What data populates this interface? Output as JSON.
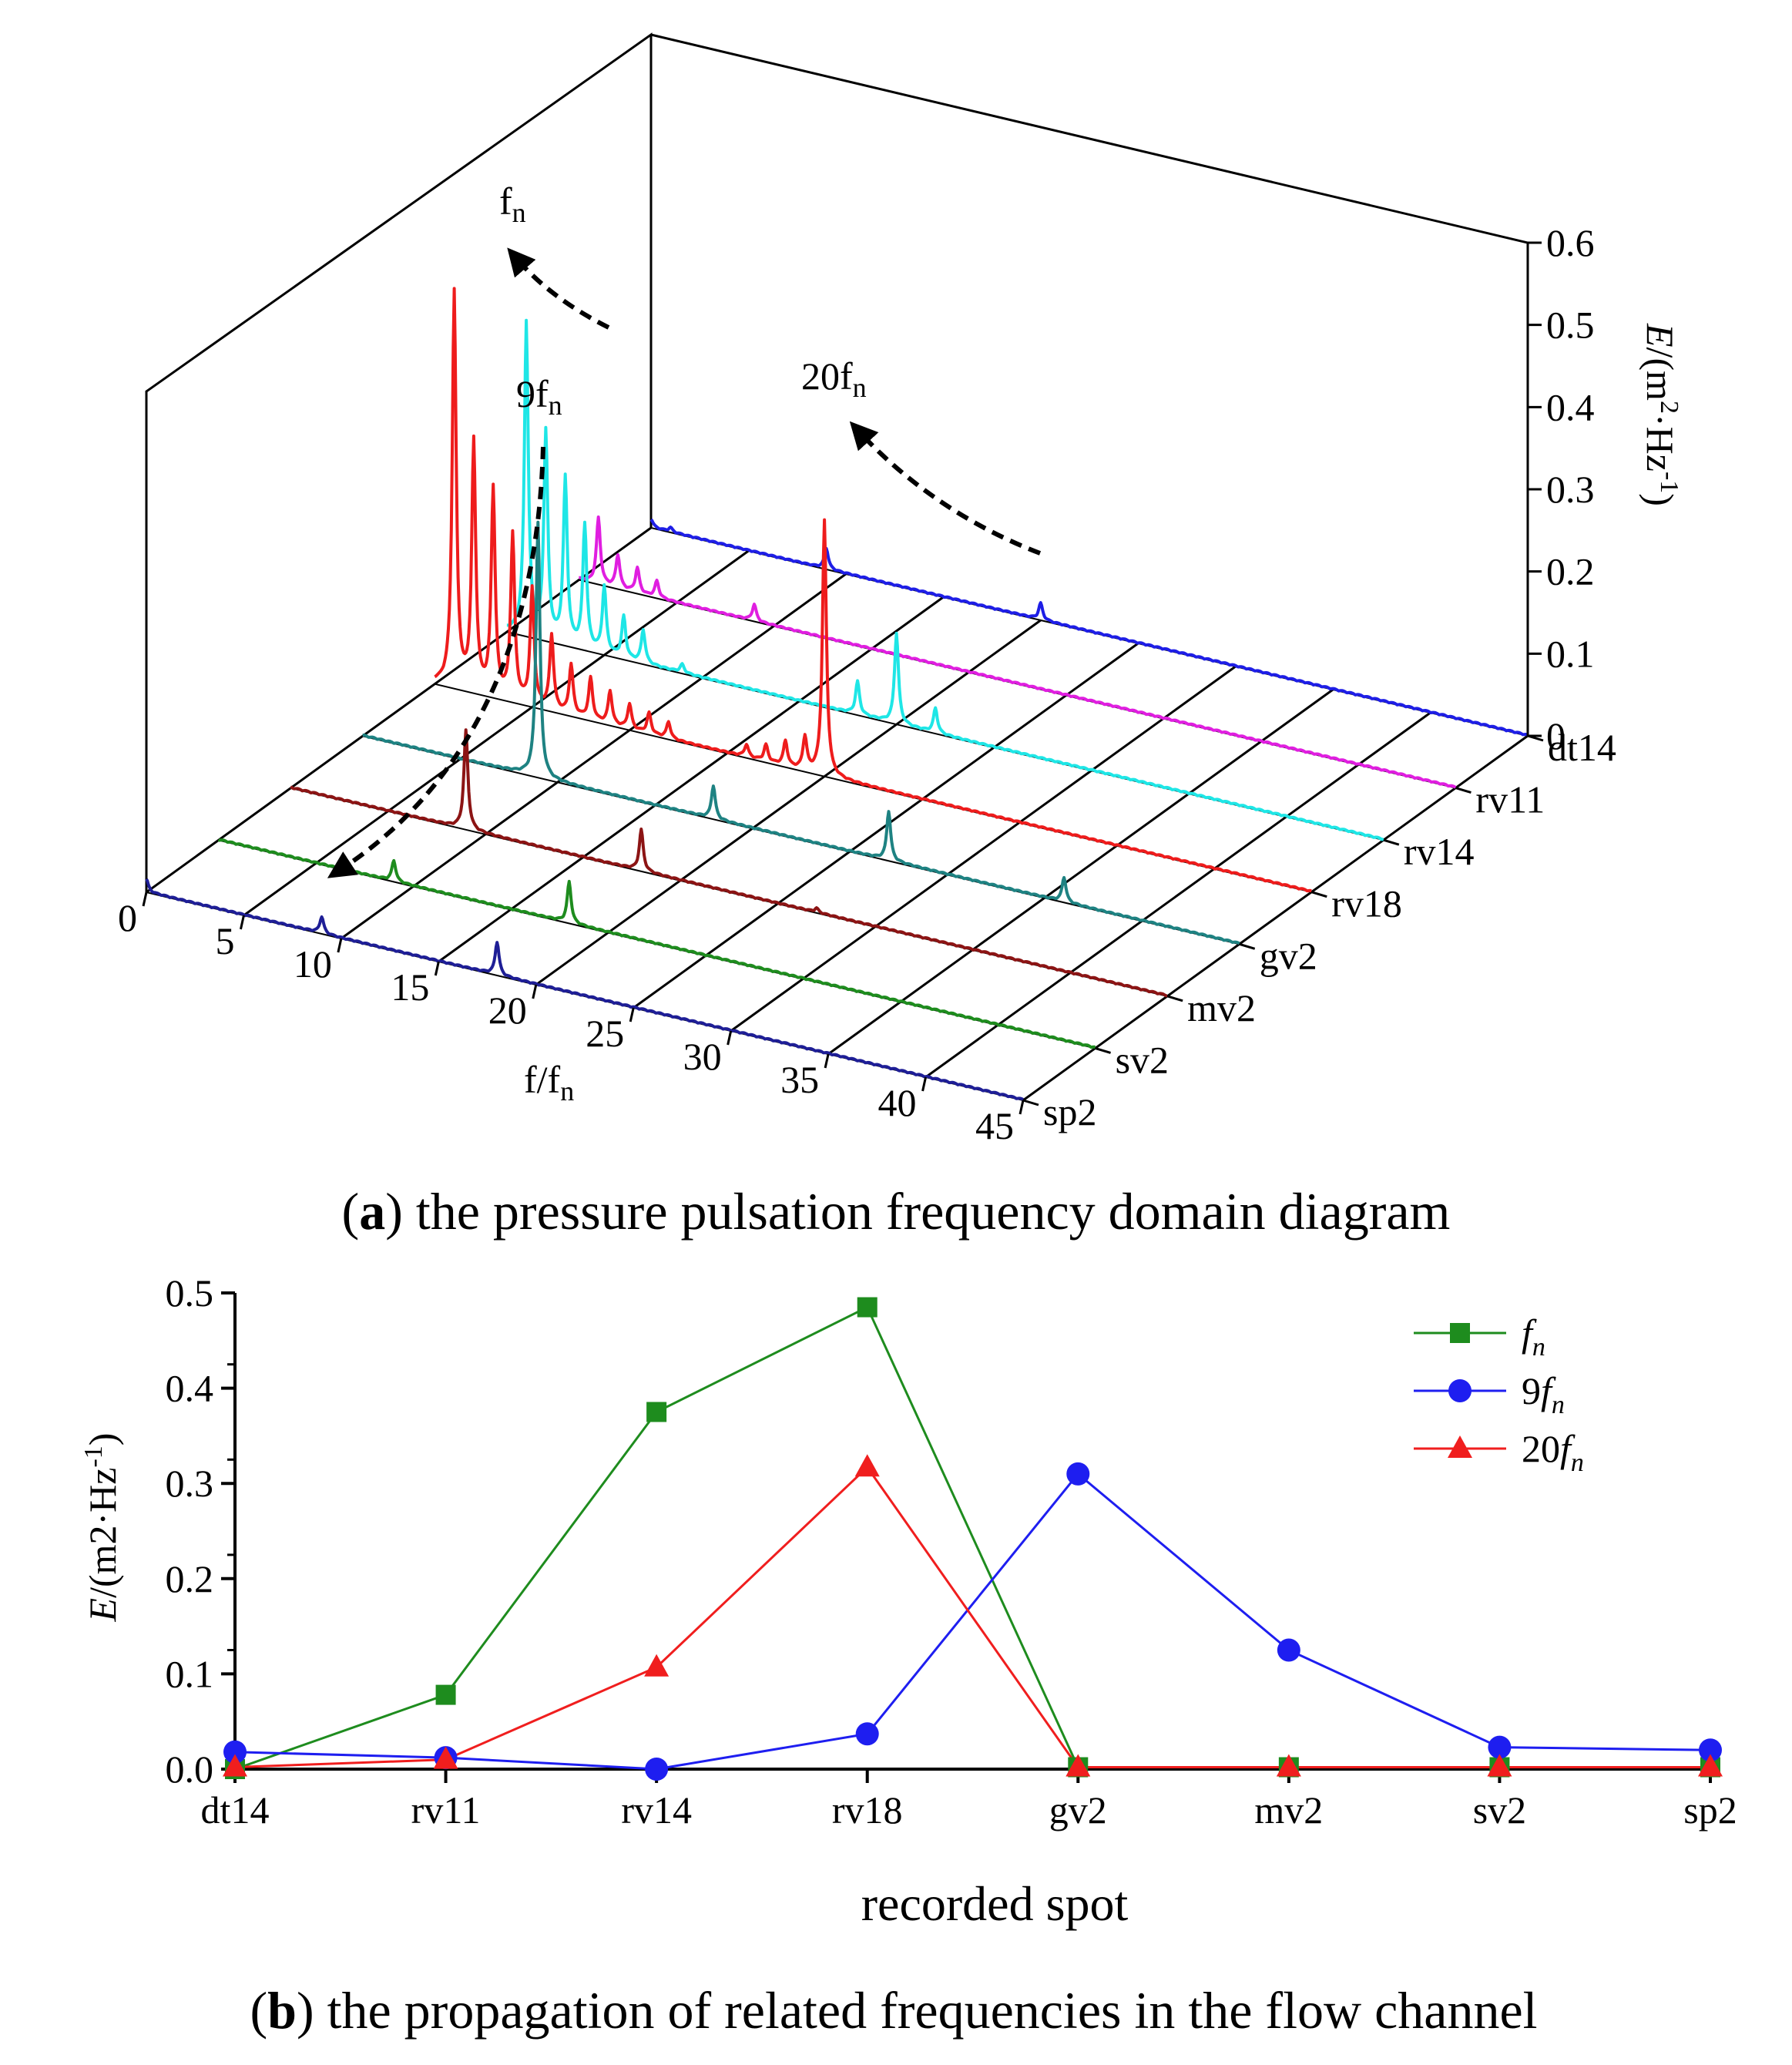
{
  "chart_data": [
    {
      "type": "line",
      "subtype": "3d-waterfall",
      "caption": {
        "letter": "a",
        "text": " the pressure pulsation frequency domain diagram"
      },
      "xlabel": {
        "main": "f/f",
        "sub": "n"
      },
      "zlabel": {
        "prefix": "E",
        "rest": "/(m",
        "sup": "2",
        "mid": "·Hz",
        "sup2": "-1",
        "end": ")"
      },
      "xlim": [
        0,
        45
      ],
      "x_ticks": [
        "0",
        "5",
        "10",
        "15",
        "20",
        "25",
        "30",
        "35",
        "40",
        "45"
      ],
      "zlim": [
        0,
        0.6
      ],
      "z_ticks": [
        "0",
        "0.1",
        "0.2",
        "0.3",
        "0.4",
        "0.5",
        "0.6"
      ],
      "depth_categories": [
        "dt14",
        "rv11",
        "rv14",
        "rv18",
        "gv2",
        "mv2",
        "sv2",
        "sp2"
      ],
      "series": [
        {
          "name": "dt14",
          "color": "#1e1ee6",
          "peaks": [
            [
              0,
              0.01
            ],
            [
              20,
              0.02
            ],
            [
              1,
              0.005
            ],
            [
              9,
              0.025
            ]
          ]
        },
        {
          "name": "rv11",
          "color": "#e01ee0",
          "peaks": [
            [
              1,
              0.08
            ],
            [
              2,
              0.04
            ],
            [
              3,
              0.03
            ],
            [
              4,
              0.02
            ],
            [
              9,
              0.02
            ]
          ]
        },
        {
          "name": "rv14",
          "color": "#1ee6e6",
          "peaks": [
            [
              1,
              0.38
            ],
            [
              2,
              0.25
            ],
            [
              3,
              0.2
            ],
            [
              4,
              0.15
            ],
            [
              5,
              0.08
            ],
            [
              6,
              0.05
            ],
            [
              7,
              0.04
            ],
            [
              9,
              0.01
            ],
            [
              18,
              0.04
            ],
            [
              20,
              0.11
            ],
            [
              22,
              0.03
            ]
          ]
        },
        {
          "name": "rv18",
          "color": "#ee1c1c",
          "peaks": [
            [
              1,
              0.48
            ],
            [
              2,
              0.3
            ],
            [
              3,
              0.25
            ],
            [
              4,
              0.2
            ],
            [
              5,
              0.14
            ],
            [
              6,
              0.09
            ],
            [
              7,
              0.06
            ],
            [
              8,
              0.05
            ],
            [
              9,
              0.04
            ],
            [
              10,
              0.03
            ],
            [
              11,
              0.025
            ],
            [
              12,
              0.02
            ],
            [
              16,
              0.015
            ],
            [
              17,
              0.02
            ],
            [
              18,
              0.03
            ],
            [
              19,
              0.04
            ],
            [
              20,
              0.31
            ]
          ]
        },
        {
          "name": "gv2",
          "color": "#1e8282",
          "peaks": [
            [
              9,
              0.31
            ],
            [
              18,
              0.04
            ],
            [
              27,
              0.06
            ],
            [
              36,
              0.03
            ]
          ]
        },
        {
          "name": "mv2",
          "color": "#8c1414",
          "peaks": [
            [
              9,
              0.12
            ],
            [
              18,
              0.05
            ],
            [
              27,
              0.005
            ]
          ]
        },
        {
          "name": "sv2",
          "color": "#1e8c1e",
          "peaks": [
            [
              9,
              0.025
            ],
            [
              18,
              0.05
            ]
          ]
        },
        {
          "name": "sp2",
          "color": "#1e1e96",
          "peaks": [
            [
              0,
              0.015
            ],
            [
              9,
              0.02
            ],
            [
              18,
              0.04
            ]
          ]
        }
      ],
      "annotations": [
        {
          "label": "f",
          "sub": "n"
        },
        {
          "label": "9f",
          "sub": "n"
        },
        {
          "label": "20f",
          "sub": "n"
        }
      ]
    },
    {
      "type": "line",
      "caption": {
        "letter": "b",
        "text": " the propagation of related frequencies in the flow channel"
      },
      "categories": [
        "dt14",
        "rv11",
        "rv14",
        "rv18",
        "gv2",
        "mv2",
        "sv2",
        "sp2"
      ],
      "xlabel": "recorded spot",
      "ylabel": {
        "prefix": "E",
        "rest": "/(m2·Hz",
        "sup": "-1",
        "end": ")"
      },
      "ylim": [
        0,
        0.5
      ],
      "y_ticks": [
        "0.0",
        "0.1",
        "0.2",
        "0.3",
        "0.4",
        "0.5"
      ],
      "legend_position": "top-right",
      "series": [
        {
          "name": "f",
          "name_prefix": "",
          "name_sub": "n",
          "color": "#1e8c1e",
          "marker": "square",
          "values": [
            0.0,
            0.078,
            0.375,
            0.485,
            0.002,
            0.002,
            0.002,
            0.002
          ]
        },
        {
          "name": "9f",
          "name_prefix": "9",
          "name_sub": "n",
          "color": "#1e1ef0",
          "marker": "circle",
          "values": [
            0.018,
            0.012,
            0.0,
            0.037,
            0.31,
            0.125,
            0.023,
            0.02
          ]
        },
        {
          "name": "20f",
          "name_prefix": "20",
          "name_sub": "n",
          "color": "#f01e1e",
          "marker": "triangle",
          "values": [
            0.002,
            0.01,
            0.107,
            0.317,
            0.002,
            0.002,
            0.002,
            0.002
          ]
        }
      ]
    }
  ]
}
